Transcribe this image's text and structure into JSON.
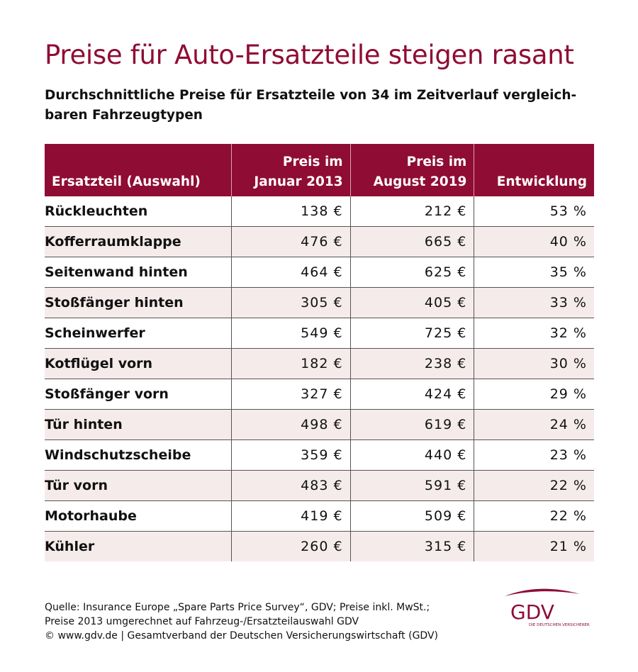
{
  "title": "Preise für Auto-Ersatzteile steigen rasant",
  "subtitle": "Durchschnittliche Preise für Ersatzteile von 34 im Zeitverlauf vergleich-baren Fahrzeugtypen",
  "subtitle_line1": "Durchschnittliche Preise für Ersatzteile von 34 im Zeitverlauf vergleich-",
  "subtitle_line2": "baren Fahrzeugtypen",
  "colors": {
    "brand": "#8f0c35",
    "row_alt": "#f6ebeb"
  },
  "chart_data": {
    "type": "table",
    "columns": [
      "Ersatzteil (Auswahl)",
      "Preis im Januar 2013",
      "Preis im August 2019",
      "Entwicklung"
    ],
    "header_lines": [
      [
        "Ersatzteil (Auswahl)"
      ],
      [
        "Preis im",
        "Januar 2013"
      ],
      [
        "Preis im",
        "August 2019"
      ],
      [
        "Entwicklung"
      ]
    ],
    "rows": [
      [
        "Rückleuchten",
        "138 €",
        "212 €",
        "53 %"
      ],
      [
        "Kofferraumklappe",
        "476 €",
        "665 €",
        "40 %"
      ],
      [
        "Seitenwand hinten",
        "464 €",
        "625 €",
        "35 %"
      ],
      [
        "Stoßfänger hinten",
        "305 €",
        "405 €",
        "33 %"
      ],
      [
        "Scheinwerfer",
        "549 €",
        "725 €",
        "32 %"
      ],
      [
        "Kotflügel vorn",
        "182 €",
        "238 €",
        "30 %"
      ],
      [
        "Stoßfänger vorn",
        "327 €",
        "424 €",
        "29 %"
      ],
      [
        "Tür hinten",
        "498 €",
        "619 €",
        "24 %"
      ],
      [
        "Windschutzscheibe",
        "359 €",
        "440 €",
        "23 %"
      ],
      [
        "Tür vorn",
        "483 €",
        "591 €",
        "22 %"
      ],
      [
        "Motorhaube",
        "419 €",
        "509 €",
        "22 %"
      ],
      [
        "Kühler",
        "260 €",
        "315 €",
        "21 %"
      ]
    ]
  },
  "footer": [
    "Quelle: Insurance Europe „Spare Parts Price Survey“, GDV; Preise inkl. MwSt.;",
    "Preise 2013 umgerechnet auf Fahrzeug-/Ersatzteilauswahl GDV",
    "© www.gdv.de | Gesamtverband der Deutschen Versicherungswirtschaft (GDV)"
  ],
  "logo": {
    "text": "GDV",
    "tagline": "DIE DEUTSCHEN VERSICHERER"
  }
}
